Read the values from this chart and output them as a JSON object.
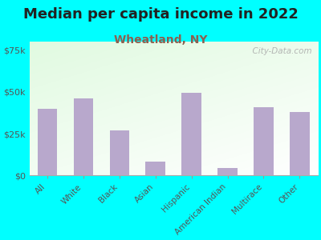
{
  "title": "Median per capita income in 2022",
  "subtitle": "Wheatland, NY",
  "categories": [
    "All",
    "White",
    "Black",
    "Asian",
    "Hispanic",
    "American Indian",
    "Multirace",
    "Other"
  ],
  "values": [
    40000,
    46000,
    27000,
    8500,
    49500,
    4500,
    41000,
    38000
  ],
  "bar_color": "#b8a8cc",
  "background_color": "#00FFFF",
  "title_color": "#222222",
  "subtitle_color": "#8B6050",
  "tick_color": "#555555",
  "ylim": [
    0,
    80000
  ],
  "yticks": [
    0,
    25000,
    50000,
    75000
  ],
  "ytick_labels": [
    "$0",
    "$25k",
    "$50k",
    "$75k"
  ],
  "title_fontsize": 13,
  "subtitle_fontsize": 10,
  "watermark": "  City-Data.com"
}
